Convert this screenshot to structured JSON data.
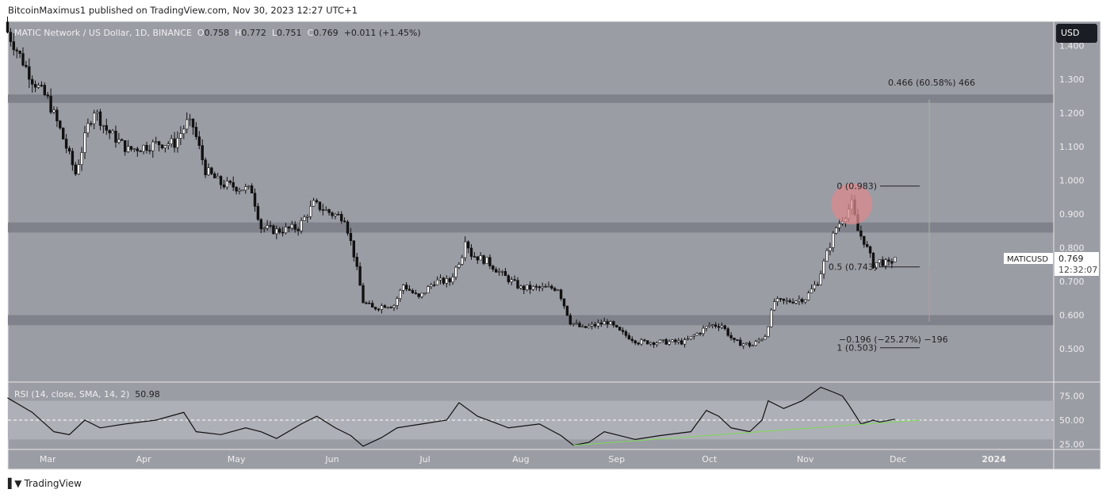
{
  "header": {
    "published": "BitcoinMaximus1 published on TradingView.com, Nov 30, 2023 12:27 UTC+1"
  },
  "legend": {
    "symbol": "MATIC Network / US Dollar, 1D, BINANCE",
    "o_label": "O",
    "o": "0.758",
    "h_label": "H",
    "h": "0.772",
    "l_label": "L",
    "l": "0.751",
    "c_label": "C",
    "c": "0.769",
    "change": "+0.011 (+1.45%)"
  },
  "currency_button": "USD",
  "price_tag": {
    "symbol": "MATICUSD",
    "price": "0.769",
    "countdown": "12:32:07"
  },
  "rsi_legend": {
    "label": "RSI (14, close, SMA, 14, 2)",
    "value": "50.98"
  },
  "footer": {
    "brand": "TradingView"
  },
  "colors": {
    "background": "#9b9da5",
    "zone": "#7f828a",
    "up": "#ffffff",
    "down": "#111111",
    "highlight_circle": "#d98a8e",
    "rsi_trend": "#7ed957",
    "rsi_band": "#aeb0b7"
  },
  "chart_data": [
    {
      "type": "candlestick",
      "title": "MATIC Network / US Dollar, 1D, BINANCE",
      "y_axis_ticks": [
        "1.400",
        "1.300",
        "1.200",
        "1.100",
        "1.000",
        "0.900",
        "0.800",
        "0.700",
        "0.600",
        "0.500"
      ],
      "ylim": [
        0.43,
        1.47
      ],
      "x_ticks": [
        "Mar",
        "Apr",
        "May",
        "Jun",
        "Jul",
        "Aug",
        "Sep",
        "Oct",
        "Nov",
        "Dec",
        "2024"
      ],
      "xlim": [
        "2023-02-16",
        "2024-01-31"
      ],
      "approx_closes": [
        [
          "2023-02-16",
          1.44
        ],
        [
          "2023-02-24",
          1.3
        ],
        [
          "2023-03-01",
          1.24
        ],
        [
          "2023-03-05",
          1.15
        ],
        [
          "2023-03-10",
          1.02
        ],
        [
          "2023-03-14",
          1.16
        ],
        [
          "2023-03-16",
          1.21
        ],
        [
          "2023-03-20",
          1.15
        ],
        [
          "2023-03-27",
          1.09
        ],
        [
          "2023-04-01",
          1.1
        ],
        [
          "2023-04-06",
          1.11
        ],
        [
          "2023-04-11",
          1.11
        ],
        [
          "2023-04-15",
          1.17
        ],
        [
          "2023-04-17",
          1.16
        ],
        [
          "2023-04-21",
          1.03
        ],
        [
          "2023-04-26",
          0.99
        ],
        [
          "2023-05-01",
          0.98
        ],
        [
          "2023-05-06",
          0.97
        ],
        [
          "2023-05-09",
          0.86
        ],
        [
          "2023-05-14",
          0.85
        ],
        [
          "2023-05-21",
          0.86
        ],
        [
          "2023-05-26",
          0.93
        ],
        [
          "2023-06-01",
          0.9
        ],
        [
          "2023-06-05",
          0.89
        ],
        [
          "2023-06-08",
          0.78
        ],
        [
          "2023-06-11",
          0.64
        ],
        [
          "2023-06-14",
          0.62
        ],
        [
          "2023-06-18",
          0.63
        ],
        [
          "2023-06-21",
          0.63
        ],
        [
          "2023-06-24",
          0.69
        ],
        [
          "2023-06-29",
          0.65
        ],
        [
          "2023-07-04",
          0.7
        ],
        [
          "2023-07-09",
          0.7
        ],
        [
          "2023-07-13",
          0.78
        ],
        [
          "2023-07-14",
          0.83
        ],
        [
          "2023-07-16",
          0.78
        ],
        [
          "2023-07-21",
          0.76
        ],
        [
          "2023-07-26",
          0.72
        ],
        [
          "2023-08-01",
          0.68
        ],
        [
          "2023-08-06",
          0.68
        ],
        [
          "2023-08-13",
          0.68
        ],
        [
          "2023-08-17",
          0.58
        ],
        [
          "2023-08-21",
          0.56
        ],
        [
          "2023-08-29",
          0.58
        ],
        [
          "2023-09-02",
          0.55
        ],
        [
          "2023-09-08",
          0.52
        ],
        [
          "2023-09-16",
          0.52
        ],
        [
          "2023-09-23",
          0.52
        ],
        [
          "2023-10-01",
          0.57
        ],
        [
          "2023-10-05",
          0.57
        ],
        [
          "2023-10-09",
          0.52
        ],
        [
          "2023-10-15",
          0.51
        ],
        [
          "2023-10-19",
          0.54
        ],
        [
          "2023-10-22",
          0.64
        ],
        [
          "2023-10-26",
          0.64
        ],
        [
          "2023-11-01",
          0.65
        ],
        [
          "2023-11-05",
          0.7
        ],
        [
          "2023-11-09",
          0.81
        ],
        [
          "2023-11-11",
          0.86
        ],
        [
          "2023-11-14",
          0.9
        ],
        [
          "2023-11-16",
          0.93
        ],
        [
          "2023-11-18",
          0.85
        ],
        [
          "2023-11-20",
          0.82
        ],
        [
          "2023-11-23",
          0.75
        ],
        [
          "2023-11-25",
          0.76
        ],
        [
          "2023-11-28",
          0.75
        ],
        [
          "2023-11-30",
          0.769
        ]
      ],
      "zones": [
        [
          1.23,
          1.255
        ],
        [
          0.845,
          0.875
        ],
        [
          0.57,
          0.6
        ]
      ],
      "fib": {
        "levels": [
          {
            "label": "0 (0.983)",
            "price": 0.983
          },
          {
            "label": "0.5 (0.743)",
            "price": 0.743
          },
          {
            "label": "1 (0.503)",
            "price": 0.503
          }
        ]
      },
      "measure": {
        "up": "0.466 (60.58%) 466",
        "down": "−0.196 (−25.27%) −196"
      },
      "highlight": {
        "date": "2023-11-16",
        "price": 0.93
      }
    },
    {
      "type": "line",
      "title": "RSI (14, close, SMA, 14, 2)",
      "y_axis_ticks": [
        "75.00",
        "50.00",
        "25.00"
      ],
      "ylim": [
        12,
        88
      ],
      "band": [
        30,
        70
      ],
      "midline": 50,
      "values": [
        [
          "2023-02-16",
          73
        ],
        [
          "2023-02-24",
          58
        ],
        [
          "2023-03-03",
          38
        ],
        [
          "2023-03-08",
          35
        ],
        [
          "2023-03-13",
          50
        ],
        [
          "2023-03-18",
          42
        ],
        [
          "2023-03-26",
          46
        ],
        [
          "2023-04-05",
          50
        ],
        [
          "2023-04-14",
          58
        ],
        [
          "2023-04-18",
          38
        ],
        [
          "2023-04-26",
          35
        ],
        [
          "2023-05-04",
          42
        ],
        [
          "2023-05-09",
          38
        ],
        [
          "2023-05-14",
          31
        ],
        [
          "2023-05-22",
          46
        ],
        [
          "2023-05-27",
          54
        ],
        [
          "2023-06-02",
          42
        ],
        [
          "2023-06-07",
          34
        ],
        [
          "2023-06-11",
          23
        ],
        [
          "2023-06-17",
          32
        ],
        [
          "2023-06-22",
          42
        ],
        [
          "2023-06-30",
          46
        ],
        [
          "2023-07-08",
          50
        ],
        [
          "2023-07-12",
          68
        ],
        [
          "2023-07-18",
          54
        ],
        [
          "2023-07-28",
          42
        ],
        [
          "2023-08-07",
          46
        ],
        [
          "2023-08-14",
          34
        ],
        [
          "2023-08-18",
          24
        ],
        [
          "2023-08-23",
          27
        ],
        [
          "2023-08-28",
          38
        ],
        [
          "2023-09-02",
          34
        ],
        [
          "2023-09-07",
          30
        ],
        [
          "2023-09-15",
          34
        ],
        [
          "2023-09-25",
          38
        ],
        [
          "2023-09-30",
          60
        ],
        [
          "2023-10-04",
          54
        ],
        [
          "2023-10-08",
          42
        ],
        [
          "2023-10-14",
          38
        ],
        [
          "2023-10-18",
          50
        ],
        [
          "2023-10-20",
          70
        ],
        [
          "2023-10-25",
          62
        ],
        [
          "2023-10-31",
          70
        ],
        [
          "2023-11-06",
          84
        ],
        [
          "2023-11-10",
          79
        ],
        [
          "2023-11-13",
          75
        ],
        [
          "2023-11-15",
          66
        ],
        [
          "2023-11-19",
          46
        ],
        [
          "2023-11-23",
          50
        ],
        [
          "2023-11-25",
          48
        ],
        [
          "2023-11-30",
          51
        ]
      ],
      "trendline": [
        [
          "2023-08-18",
          24
        ],
        [
          "2023-12-08",
          50
        ]
      ]
    }
  ]
}
